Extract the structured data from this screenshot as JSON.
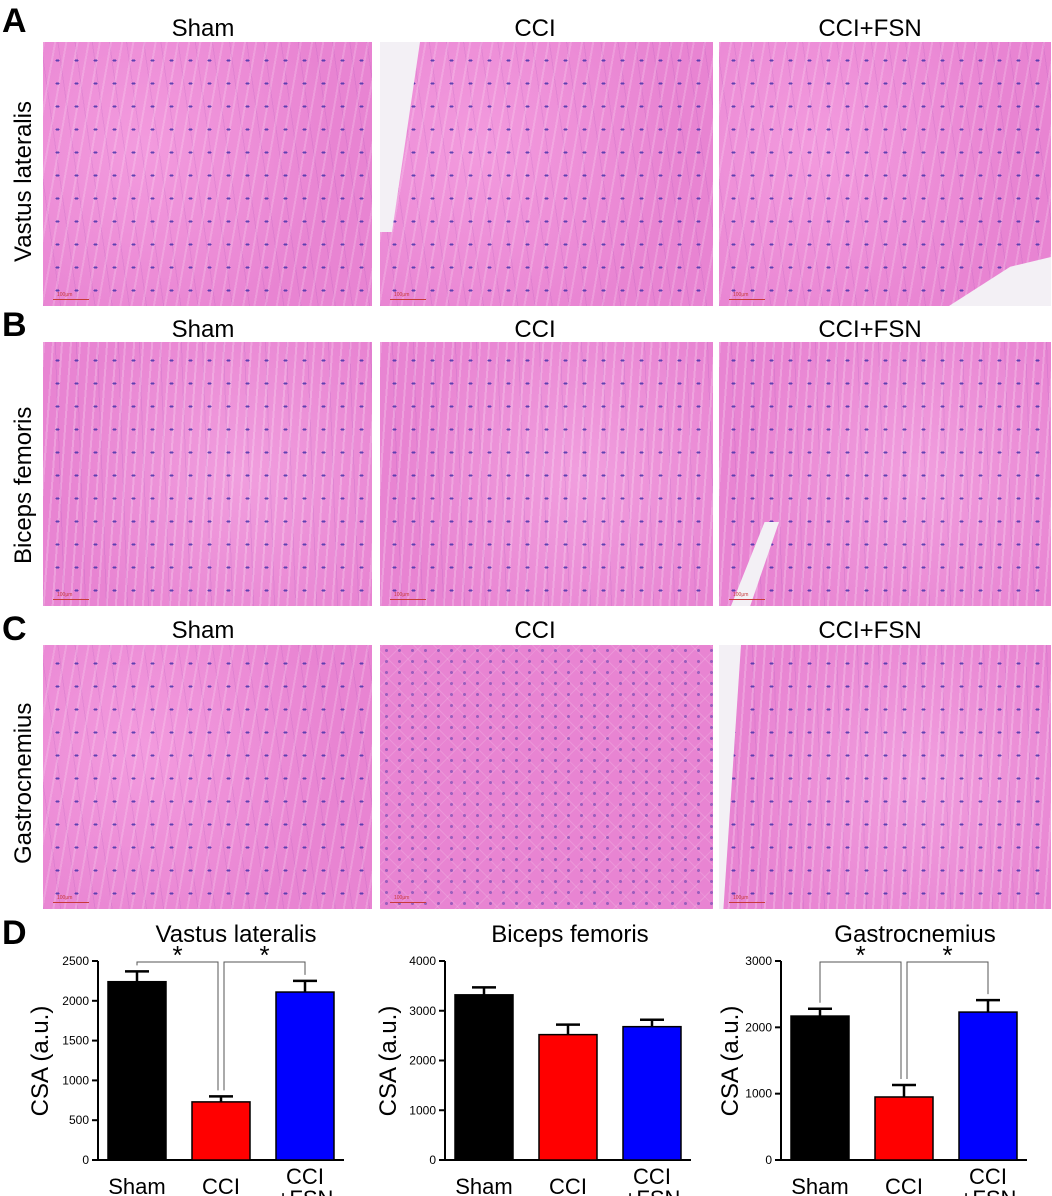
{
  "panels": {
    "a": "A",
    "b": "B",
    "c": "C",
    "d": "D"
  },
  "columns": [
    "Sham",
    "CCI",
    "CCI+FSN"
  ],
  "rows": [
    {
      "label": "Vastus lateralis"
    },
    {
      "label": "Biceps femoris"
    },
    {
      "label": "Gastrocnemius"
    }
  ],
  "scale_bar_label": "100μm",
  "colors": {
    "sham": "#000000",
    "cci": "#ff0000",
    "cci_fsn": "#0000ff",
    "tissue": "#e884d2",
    "nuclei": "#4a3aa8"
  },
  "chart_data": [
    {
      "type": "bar",
      "title": "Vastus lateralis",
      "ylabel": "CSA (a.u.)",
      "ylim": [
        0,
        2500
      ],
      "yticks": [
        0,
        500,
        1000,
        1500,
        2000,
        2500
      ],
      "categories": [
        "Sham",
        "CCI",
        "CCI\n+FSN"
      ],
      "values": [
        2240,
        730,
        2110
      ],
      "errors": [
        130,
        70,
        140
      ],
      "significance": [
        {
          "from": 0,
          "to": 1,
          "label": "*"
        },
        {
          "from": 1,
          "to": 2,
          "label": "*"
        }
      ]
    },
    {
      "type": "bar",
      "title": "Biceps femoris",
      "ylabel": "CSA (a.u.)",
      "ylim": [
        0,
        4000
      ],
      "yticks": [
        0,
        1000,
        2000,
        3000,
        4000
      ],
      "categories": [
        "Sham",
        "CCI",
        "CCI\n+FSN"
      ],
      "values": [
        3320,
        2520,
        2680
      ],
      "errors": [
        150,
        200,
        140
      ],
      "significance": []
    },
    {
      "type": "bar",
      "title": "Gastrocnemius",
      "ylabel": "CSA (a.u.)",
      "ylim": [
        0,
        3000
      ],
      "yticks": [
        0,
        1000,
        2000,
        3000
      ],
      "categories": [
        "Sham",
        "CCI",
        "CCI\n+FSN"
      ],
      "values": [
        2170,
        950,
        2230
      ],
      "errors": [
        110,
        180,
        180
      ],
      "significance": [
        {
          "from": 0,
          "to": 1,
          "label": "*"
        },
        {
          "from": 1,
          "to": 2,
          "label": "*"
        }
      ]
    }
  ]
}
